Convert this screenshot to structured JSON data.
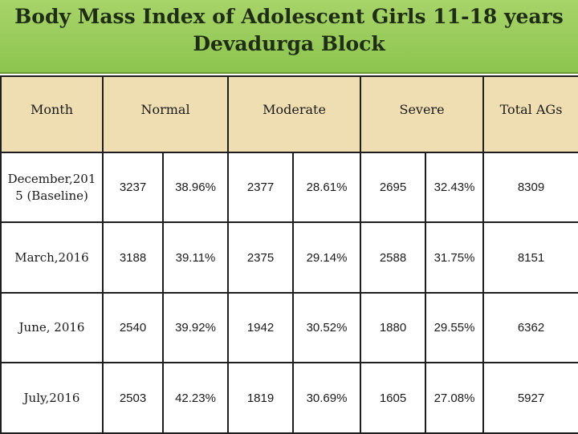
{
  "title": {
    "line1": "Body Mass Index of Adolescent Girls 11-18 years",
    "line2": "Devadurga Block"
  },
  "table": {
    "headers": {
      "month": "Month",
      "normal": "Normal",
      "moderate": "Moderate",
      "severe": "Severe",
      "total": "Total AGs"
    },
    "rows": [
      {
        "month_line1": "December,201",
        "month_line2": "5 (Baseline)",
        "normal_n": "3237",
        "normal_pct": "38.96%",
        "moderate_n": "2377",
        "moderate_pct": "28.61%",
        "severe_n": "2695",
        "severe_pct": "32.43%",
        "total": "8309"
      },
      {
        "month_line1": "March,2016",
        "month_line2": "",
        "normal_n": "3188",
        "normal_pct": "39.11%",
        "moderate_n": "2375",
        "moderate_pct": "29.14%",
        "severe_n": "2588",
        "severe_pct": "31.75%",
        "total": "8151"
      },
      {
        "month_line1": "June, 2016",
        "month_line2": "",
        "normal_n": "2540",
        "normal_pct": "39.92%",
        "moderate_n": "1942",
        "moderate_pct": "30.52%",
        "severe_n": "1880",
        "severe_pct": "29.55%",
        "total": "6362"
      },
      {
        "month_line1": "July,2016",
        "month_line2": "",
        "normal_n": "2503",
        "normal_pct": "42.23%",
        "moderate_n": "1819",
        "moderate_pct": "30.69%",
        "severe_n": "1605",
        "severe_pct": "27.08%",
        "total": "5927"
      }
    ]
  },
  "colors": {
    "title_band": "#8cc44e",
    "header_bg": "#efdeb2",
    "border": "#1e1e1e"
  }
}
